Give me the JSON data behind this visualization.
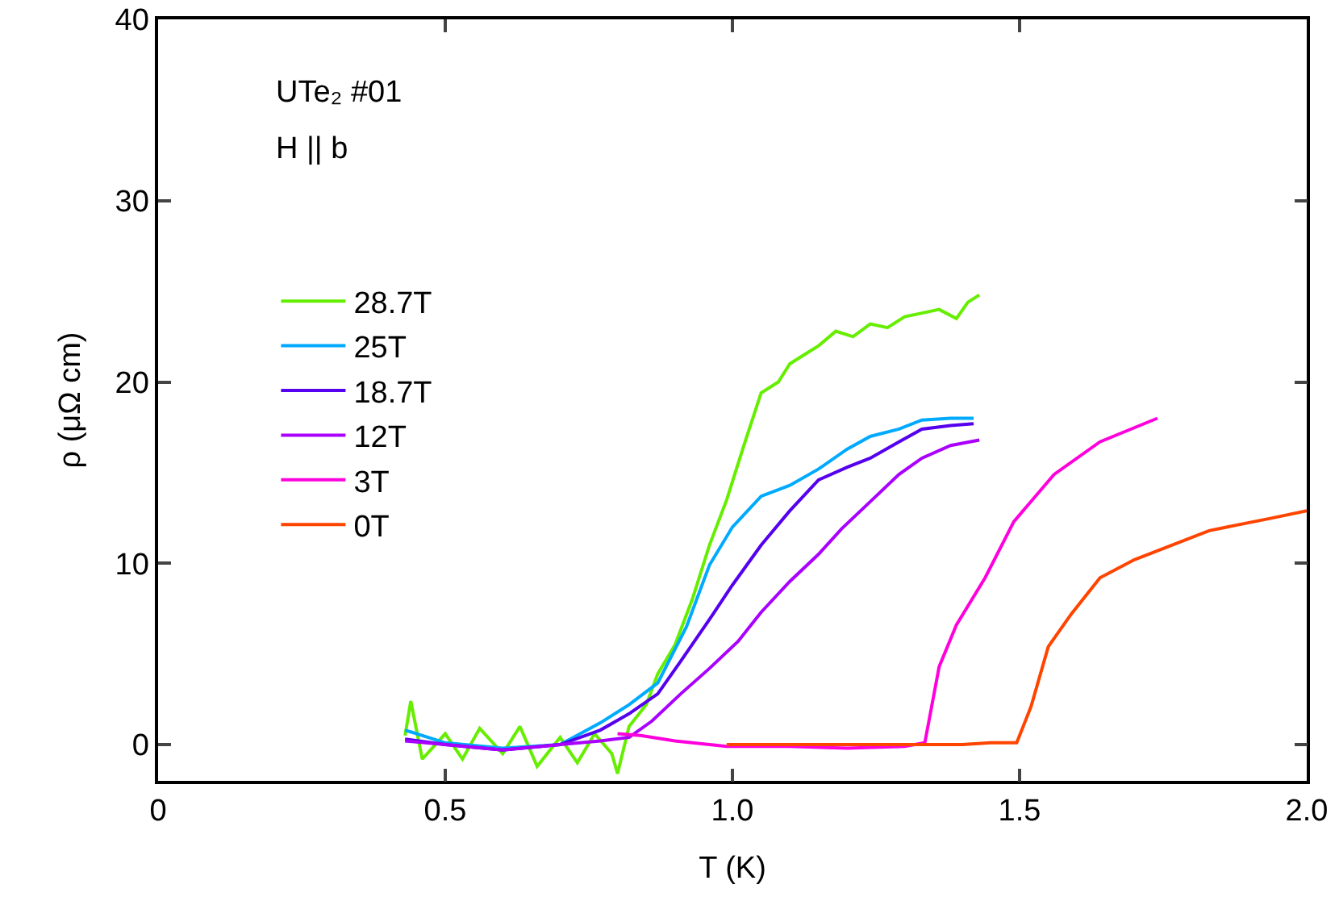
{
  "chart_data": {
    "type": "line",
    "xlabel": "T (K)",
    "ylabel": "ρ (μΩ cm)",
    "annotations": [
      "UTe₂ #01",
      "H || b"
    ],
    "xlim": [
      0,
      2
    ],
    "xticks": [
      0,
      0.5,
      {
        "value": 1,
        "label": "1.0"
      },
      1.5,
      {
        "value": 2,
        "label": "2.0"
      }
    ],
    "ylim": [
      -2,
      40
    ],
    "yticks": [
      0,
      10,
      20,
      30,
      40
    ],
    "grid": false,
    "legend": "left",
    "marker": "none",
    "line_style": "solid",
    "series": [
      {
        "name": "28.7T",
        "color": "#66ee00",
        "x": [
          0.43,
          0.44,
          0.46,
          0.5,
          0.53,
          0.56,
          0.6,
          0.63,
          0.66,
          0.7,
          0.73,
          0.76,
          0.79,
          0.8,
          0.82,
          0.85,
          0.87,
          0.9,
          0.93,
          0.96,
          0.99,
          1.02,
          1.05,
          1.08,
          1.1,
          1.13,
          1.15,
          1.18,
          1.21,
          1.24,
          1.27,
          1.3,
          1.33,
          1.36,
          1.39,
          1.41,
          1.43
        ],
        "values": [
          0.5,
          2.4,
          -0.8,
          0.6,
          -0.8,
          0.9,
          -0.5,
          1.0,
          -1.2,
          0.4,
          -1.0,
          0.6,
          -0.5,
          -1.6,
          1.0,
          2.2,
          3.9,
          5.5,
          8.0,
          11.0,
          13.5,
          16.5,
          19.4,
          20.0,
          21.0,
          21.6,
          22.0,
          22.8,
          22.5,
          23.2,
          23.0,
          23.6,
          23.8,
          24.0,
          23.5,
          24.4,
          24.8
        ]
      },
      {
        "name": "25T",
        "color": "#00aaff",
        "x": [
          0.43,
          0.5,
          0.6,
          0.7,
          0.77,
          0.82,
          0.87,
          0.92,
          0.96,
          1.0,
          1.05,
          1.1,
          1.15,
          1.2,
          1.24,
          1.29,
          1.33,
          1.38,
          1.42
        ],
        "values": [
          0.8,
          0.1,
          -0.2,
          0.0,
          1.2,
          2.2,
          3.4,
          6.5,
          9.9,
          12.0,
          13.7,
          14.3,
          15.2,
          16.3,
          17.0,
          17.4,
          17.9,
          18.0,
          18.0
        ]
      },
      {
        "name": "18.7T",
        "color": "#5500ee",
        "x": [
          0.43,
          0.5,
          0.6,
          0.7,
          0.77,
          0.82,
          0.87,
          0.91,
          0.96,
          1.0,
          1.05,
          1.1,
          1.15,
          1.2,
          1.24,
          1.29,
          1.33,
          1.38,
          1.42
        ],
        "values": [
          0.3,
          0.0,
          -0.3,
          0.0,
          0.8,
          1.7,
          2.8,
          4.6,
          6.9,
          8.8,
          11.0,
          12.9,
          14.6,
          15.3,
          15.8,
          16.7,
          17.4,
          17.6,
          17.7
        ]
      },
      {
        "name": "12T",
        "color": "#aa00ff",
        "x": [
          0.43,
          0.5,
          0.6,
          0.7,
          0.77,
          0.82,
          0.86,
          0.91,
          0.96,
          1.01,
          1.05,
          1.1,
          1.15,
          1.19,
          1.24,
          1.29,
          1.33,
          1.38,
          1.43
        ],
        "values": [
          0.2,
          0.0,
          -0.3,
          0.0,
          0.2,
          0.4,
          1.3,
          2.8,
          4.2,
          5.7,
          7.3,
          9.0,
          10.5,
          11.9,
          13.4,
          14.9,
          15.8,
          16.5,
          16.8
        ]
      },
      {
        "name": "3T",
        "color": "#ff00dd",
        "x": [
          0.8,
          0.84,
          0.9,
          0.99,
          1.1,
          1.2,
          1.3,
          1.335,
          1.36,
          1.39,
          1.44,
          1.49,
          1.56,
          1.64,
          1.74
        ],
        "values": [
          0.6,
          0.5,
          0.2,
          -0.1,
          -0.1,
          -0.2,
          -0.1,
          0.1,
          4.3,
          6.6,
          9.2,
          12.3,
          14.9,
          16.7,
          18.0
        ]
      },
      {
        "name": "0T",
        "color": "#ff4400",
        "x": [
          0.99,
          1.1,
          1.2,
          1.3,
          1.4,
          1.45,
          1.495,
          1.52,
          1.55,
          1.59,
          1.64,
          1.7,
          1.83,
          1.94,
          2.0
        ],
        "values": [
          0.0,
          0.0,
          0.0,
          0.0,
          0.0,
          0.1,
          0.1,
          2.1,
          5.4,
          7.2,
          9.2,
          10.2,
          11.8,
          12.5,
          12.9
        ]
      }
    ]
  }
}
